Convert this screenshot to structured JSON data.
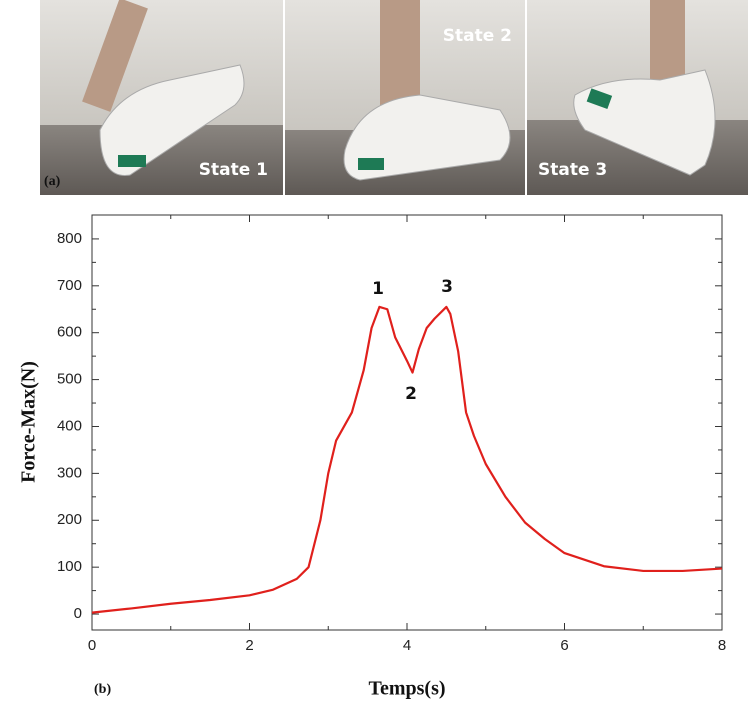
{
  "photos": {
    "panel_label": "(a)",
    "states": [
      "State 1",
      "State 2",
      "State 3"
    ]
  },
  "chart_data": {
    "type": "line",
    "panel_label": "(b)",
    "x_label": "Temps(s)",
    "y_label": "Force-Max(N)",
    "x": [
      0,
      0.5,
      1,
      1.5,
      2,
      2.3,
      2.6,
      2.75,
      2.9,
      3.0,
      3.1,
      3.3,
      3.45,
      3.55,
      3.65,
      3.75,
      3.85,
      4.0,
      4.07,
      4.15,
      4.25,
      4.35,
      4.5,
      4.55,
      4.65,
      4.75,
      4.85,
      5.0,
      5.25,
      5.5,
      5.75,
      6.0,
      6.5,
      7.0,
      7.5,
      8.0
    ],
    "series": [
      {
        "name": "Force-Max",
        "color": "#e0201c",
        "values": [
          3,
          12,
          22,
          30,
          40,
          52,
          75,
          100,
          200,
          300,
          370,
          430,
          520,
          610,
          655,
          650,
          590,
          540,
          515,
          565,
          610,
          630,
          655,
          640,
          560,
          430,
          380,
          320,
          250,
          195,
          160,
          130,
          102,
          92,
          92,
          97
        ]
      }
    ],
    "annotations": [
      "1",
      "2",
      "3"
    ],
    "xlim": [
      0,
      8
    ],
    "ylim": [
      -34,
      851
    ],
    "xticks": [
      0,
      2,
      4,
      6,
      8
    ],
    "yticks": [
      0,
      100,
      200,
      300,
      400,
      500,
      600,
      700,
      800
    ]
  }
}
